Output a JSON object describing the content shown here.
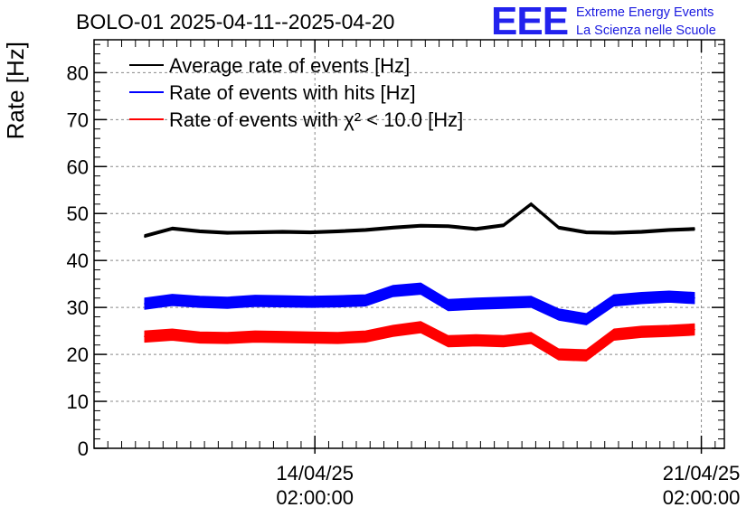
{
  "logo": {
    "mark": "EEE",
    "line1": "Extreme Energy Events",
    "line2": "La Scienza nelle Scuole",
    "color": "#2222ee"
  },
  "chart_data": {
    "type": "line",
    "title": "BOLO-01 2025-04-11--2025-04-20",
    "ylabel": "Rate [Hz]",
    "xlabel": "",
    "ylim": [
      0,
      87
    ],
    "yticks": [
      0,
      10,
      20,
      30,
      40,
      50,
      60,
      70,
      80
    ],
    "xlim": [
      "2025-04-10T02:00:00",
      "2025-04-21T12:00:00"
    ],
    "xticks": [
      {
        "value": "2025-04-14T02:00:00",
        "label1": "14/04/25",
        "label2": "02:00:00"
      },
      {
        "value": "2025-04-21T02:00:00",
        "label1": "21/04/25",
        "label2": "02:00:00"
      }
    ],
    "grid": true,
    "legend_position": "top-left",
    "x": [
      "2025-04-11T00:00:00",
      "2025-04-11T12:00:00",
      "2025-04-12T00:00:00",
      "2025-04-12T12:00:00",
      "2025-04-13T00:00:00",
      "2025-04-13T12:00:00",
      "2025-04-14T00:00:00",
      "2025-04-14T12:00:00",
      "2025-04-15T00:00:00",
      "2025-04-15T12:00:00",
      "2025-04-16T00:00:00",
      "2025-04-16T12:00:00",
      "2025-04-17T00:00:00",
      "2025-04-17T12:00:00",
      "2025-04-18T00:00:00",
      "2025-04-18T12:00:00",
      "2025-04-19T00:00:00",
      "2025-04-19T12:00:00",
      "2025-04-20T00:00:00",
      "2025-04-20T12:00:00",
      "2025-04-20T23:00:00"
    ],
    "series": [
      {
        "name": "Average rate of events [Hz]",
        "color": "#000000",
        "band": 0.6,
        "values": [
          45.2,
          46.8,
          46.2,
          45.9,
          46.0,
          46.1,
          46.0,
          46.2,
          46.5,
          47.0,
          47.4,
          47.3,
          46.7,
          47.5,
          52.0,
          47.0,
          46.0,
          45.9,
          46.1,
          46.5,
          46.7
        ]
      },
      {
        "name": "Rate of events with hits [Hz]",
        "color": "#0000ff",
        "band": 2.4,
        "values": [
          30.8,
          31.6,
          31.2,
          31.0,
          31.4,
          31.3,
          31.2,
          31.3,
          31.5,
          33.5,
          34.0,
          30.5,
          30.8,
          31.0,
          31.2,
          28.5,
          27.5,
          31.5,
          32.0,
          32.3,
          32.0
        ]
      },
      {
        "name": "Rate of events with χ² < 10.0 [Hz]",
        "color": "#ff0000",
        "band": 2.4,
        "values": [
          23.8,
          24.2,
          23.6,
          23.5,
          23.8,
          23.7,
          23.6,
          23.5,
          23.8,
          25.0,
          25.8,
          22.8,
          23.0,
          22.8,
          23.5,
          20.0,
          19.8,
          24.2,
          24.8,
          25.0,
          25.3
        ]
      }
    ]
  }
}
